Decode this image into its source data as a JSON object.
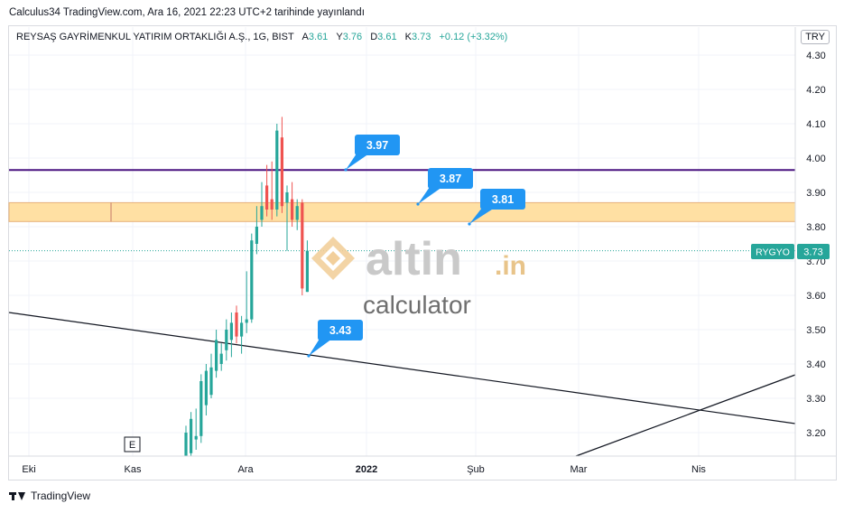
{
  "header": {
    "published_text": "Calculus34 TradingView.com, Ara 16, 2021 22:23 UTC+2 tarihinde yayınlandı"
  },
  "legend": {
    "symbol": "REYSAŞ GAYRİMENKUL YATIRIM ORTAKLIĞI A.Ş., 1G, BIST",
    "open_label": "A",
    "open": "3.61",
    "high_label": "Y",
    "high": "3.76",
    "low_label": "D",
    "low": "3.61",
    "close_label": "K",
    "close": "3.73",
    "change": "+0.12 (+3.32%)"
  },
  "currency": "TRY",
  "price_tag": {
    "ticker": "RYGYO",
    "value": "3.73"
  },
  "watermark": {
    "brand": "altin",
    "suffix": ".in",
    "sub": "calculator"
  },
  "footer": {
    "brand": "TradingView"
  },
  "earnings_marker": "E",
  "colors": {
    "up": "#26a69a",
    "down": "#ef5350",
    "zone": "#ffe0a3",
    "resistance": "#4a1480",
    "callout": "#2196f3",
    "tag": "#26a69a"
  },
  "chart_data": {
    "type": "candlestick",
    "y_ticks": [
      4.3,
      4.2,
      4.1,
      4.0,
      3.9,
      3.8,
      3.7,
      3.6,
      3.5,
      3.4,
      3.3,
      3.2
    ],
    "x_ticks": [
      "Eki",
      "Kas",
      "Ara",
      "2022",
      "Şub",
      "Mar",
      "Nis"
    ],
    "horizontal_line": 3.965,
    "zone": [
      3.815,
      3.87
    ],
    "current_price": 3.73,
    "annotations": [
      "3.97",
      "3.87",
      "3.81",
      "3.43"
    ],
    "candles": [
      {
        "o": 3.13,
        "h": 3.22,
        "l": 3.12,
        "c": 3.2
      },
      {
        "o": 3.14,
        "h": 3.26,
        "l": 3.13,
        "c": 3.24
      },
      {
        "o": 3.18,
        "h": 3.27,
        "l": 3.15,
        "c": 3.19
      },
      {
        "o": 3.19,
        "h": 3.37,
        "l": 3.17,
        "c": 3.35
      },
      {
        "o": 3.28,
        "h": 3.4,
        "l": 3.25,
        "c": 3.38
      },
      {
        "o": 3.31,
        "h": 3.43,
        "l": 3.3,
        "c": 3.39
      },
      {
        "o": 3.38,
        "h": 3.5,
        "l": 3.36,
        "c": 3.47
      },
      {
        "o": 3.4,
        "h": 3.46,
        "l": 3.38,
        "c": 3.43
      },
      {
        "o": 3.44,
        "h": 3.53,
        "l": 3.41,
        "c": 3.5
      },
      {
        "o": 3.47,
        "h": 3.55,
        "l": 3.42,
        "c": 3.52
      },
      {
        "o": 3.55,
        "h": 3.57,
        "l": 3.46,
        "c": 3.48
      },
      {
        "o": 3.48,
        "h": 3.54,
        "l": 3.43,
        "c": 3.52
      },
      {
        "o": 3.52,
        "h": 3.67,
        "l": 3.49,
        "c": 3.53
      },
      {
        "o": 3.53,
        "h": 3.78,
        "l": 3.52,
        "c": 3.76
      },
      {
        "o": 3.75,
        "h": 3.86,
        "l": 3.72,
        "c": 3.8
      },
      {
        "o": 3.82,
        "h": 3.93,
        "l": 3.8,
        "c": 3.86
      },
      {
        "o": 3.92,
        "h": 3.98,
        "l": 3.83,
        "c": 3.85
      },
      {
        "o": 3.88,
        "h": 3.99,
        "l": 3.82,
        "c": 3.85
      },
      {
        "o": 3.85,
        "h": 4.1,
        "l": 3.83,
        "c": 4.08
      },
      {
        "o": 4.06,
        "h": 4.12,
        "l": 3.84,
        "c": 3.86
      },
      {
        "o": 3.87,
        "h": 3.92,
        "l": 3.73,
        "c": 3.9
      },
      {
        "o": 3.88,
        "h": 3.93,
        "l": 3.8,
        "c": 3.82
      },
      {
        "o": 3.82,
        "h": 3.88,
        "l": 3.79,
        "c": 3.86
      },
      {
        "o": 3.87,
        "h": 3.88,
        "l": 3.6,
        "c": 3.62
      },
      {
        "o": 3.61,
        "h": 3.76,
        "l": 3.61,
        "c": 3.73
      }
    ]
  }
}
